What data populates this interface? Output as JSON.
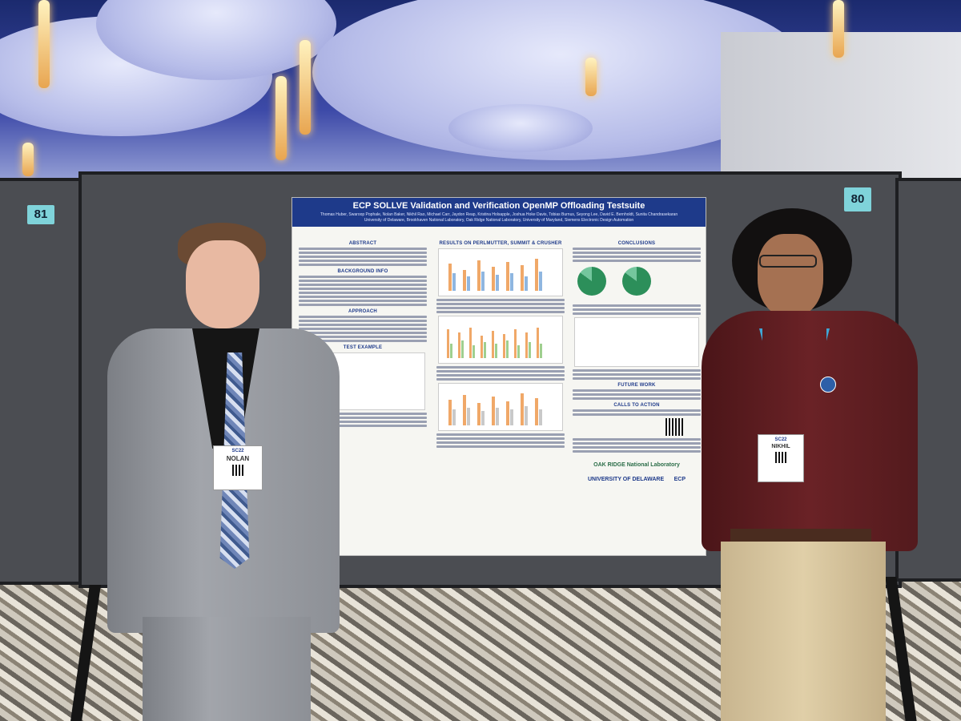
{
  "booths": {
    "left_number": "81",
    "right_number": "80"
  },
  "poster": {
    "title": "ECP SOLLVE Validation and Verification OpenMP Offloading Testsuite",
    "authors": "Thomas Huber, Swaroop Pophale, Nolan Baker, Nikhil Rao, Michael Carr, Jaydon Reap, Kristina Holsapple, Joshua Hoke Davis, Tobias Burnus, Seyong Lee, David E. Bernholdt, Sunita Chandrasekaran",
    "affiliations": "University of Delaware, Brookhaven National Laboratory, Oak Ridge National Laboratory, University of Maryland, Siemens Electronic Design Automation",
    "sections": {
      "abstract": "ABSTRACT",
      "background": "BACKGROUND INFO",
      "approach": "APPROACH",
      "test_example": "TEST EXAMPLE",
      "results": "RESULTS ON PERLMUTTER, SUMMIT & CRUSHER",
      "conclusions": "CONCLUSIONS",
      "future_work": "FUTURE WORK",
      "calls_to_action": "CALLS TO ACTION"
    },
    "logos": {
      "ornl": "OAK RIDGE National Laboratory",
      "udel": "UNIVERSITY OF DELAWARE",
      "ecp": "ECP"
    }
  },
  "badges": {
    "left": {
      "event": "SC22",
      "name": "NOLAN"
    },
    "right": {
      "event": "SC22",
      "name": "NIKHIL"
    }
  }
}
